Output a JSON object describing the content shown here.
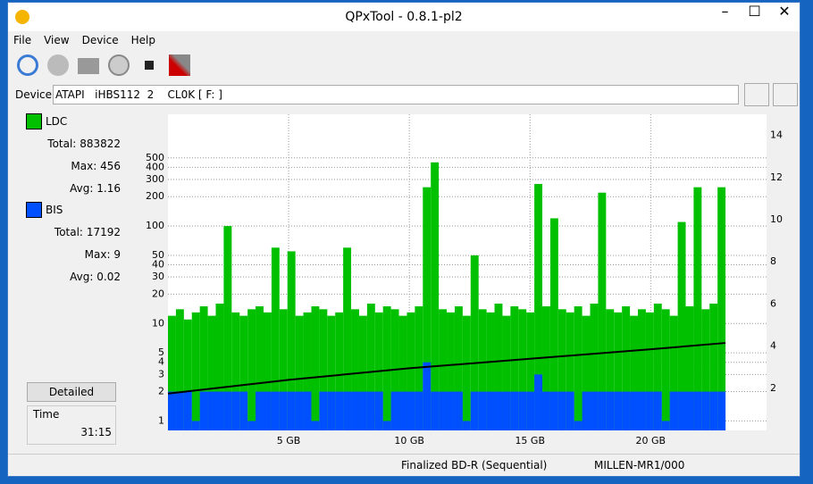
{
  "window": {
    "title": "QPxTool - 0.8.1-pl2"
  },
  "menu": [
    "File",
    "View",
    "Device",
    "Help"
  ],
  "device": {
    "label": "Device:",
    "value": "ATAPI   iHBS112  2    CL0K [ F: ]"
  },
  "stats": {
    "ldc": {
      "total_label": "Total:",
      "total": 883822,
      "max_label": "Max:",
      "max": 456,
      "avg_label": "Avg:",
      "avg": 1.16
    },
    "bis": {
      "total_label": "Total:",
      "total": 17192,
      "max_label": "Max:",
      "max": 9,
      "avg_label": "Avg:",
      "avg": 0.02
    }
  },
  "detailed_button": "Detailed",
  "time": {
    "label": "Time",
    "value": "31:15"
  },
  "status": [
    "Finalized BD-R (Sequential)",
    "MILLEN-MR1/000"
  ],
  "chart_data": {
    "type": "bar",
    "log_y": true,
    "grid": true,
    "x": [
      0,
      0.33,
      0.66,
      0.99,
      1.32,
      1.65,
      1.98,
      2.31,
      2.64,
      2.97,
      3.3,
      3.63,
      3.96,
      4.29,
      4.62,
      4.95,
      5.28,
      5.61,
      5.94,
      6.27,
      6.6,
      6.93,
      7.26,
      7.59,
      7.92,
      8.25,
      8.58,
      8.91,
      9.24,
      9.57,
      9.9,
      10.23,
      10.56,
      10.89,
      11.22,
      11.55,
      11.88,
      12.21,
      12.54,
      12.87,
      13.2,
      13.53,
      13.86,
      14.19,
      14.52,
      14.85,
      15.18,
      15.51,
      15.84,
      16.17,
      16.5,
      16.83,
      17.16,
      17.49,
      17.82,
      18.15,
      18.48,
      18.81,
      19.14,
      19.47,
      19.8,
      20.13,
      20.46,
      20.79,
      21.12,
      21.45,
      21.78,
      22.11,
      22.44,
      22.77
    ],
    "series": [
      {
        "name": "LDC",
        "color": "#00c000",
        "values": [
          12,
          14,
          11,
          13,
          15,
          12,
          16,
          100,
          13,
          12,
          14,
          15,
          13,
          60,
          14,
          55,
          12,
          13,
          15,
          14,
          12,
          13,
          60,
          14,
          12,
          16,
          13,
          15,
          14,
          12,
          13,
          15,
          250,
          450,
          14,
          13,
          15,
          12,
          50,
          14,
          13,
          16,
          12,
          15,
          14,
          13,
          270,
          15,
          120,
          14,
          13,
          15,
          12,
          16,
          220,
          14,
          13,
          15,
          12,
          14,
          13,
          16,
          14,
          12,
          110,
          15,
          250,
          14,
          16,
          250
        ]
      },
      {
        "name": "BIS",
        "color": "#0050ff",
        "values": [
          2,
          2,
          2,
          1,
          2,
          2,
          2,
          2,
          2,
          2,
          1,
          2,
          2,
          2,
          2,
          2,
          2,
          2,
          1,
          2,
          2,
          2,
          2,
          2,
          2,
          2,
          2,
          1,
          2,
          2,
          2,
          2,
          4,
          2,
          2,
          2,
          2,
          1,
          2,
          2,
          2,
          2,
          2,
          2,
          2,
          2,
          3,
          2,
          2,
          2,
          2,
          1,
          2,
          2,
          2,
          2,
          2,
          2,
          2,
          2,
          2,
          2,
          1,
          2,
          2,
          2,
          2,
          2,
          2,
          2
        ]
      },
      {
        "color": "#000000",
        "axis": "y2",
        "type": "line",
        "x": [
          0,
          5,
          10,
          15,
          20,
          23.1
        ],
        "values": [
          1.75,
          2.4,
          2.95,
          3.4,
          3.85,
          4.15
        ]
      }
    ],
    "xlim": [
      0,
      24.8
    ],
    "xticks": [
      {
        "value": 5,
        "label": "5 GB"
      },
      {
        "value": 10,
        "label": "10 GB"
      },
      {
        "value": 15,
        "label": "15 GB"
      },
      {
        "value": 20,
        "label": "20 GB"
      }
    ],
    "ylim": [
      0.8,
      1400
    ],
    "yticks": [
      1,
      2,
      3,
      4,
      5,
      10,
      20,
      30,
      40,
      50,
      100,
      200,
      300,
      400,
      500
    ],
    "y2lim": [
      0,
      15
    ],
    "y2ticks": [
      2,
      4,
      6,
      8,
      10,
      12,
      14
    ]
  }
}
